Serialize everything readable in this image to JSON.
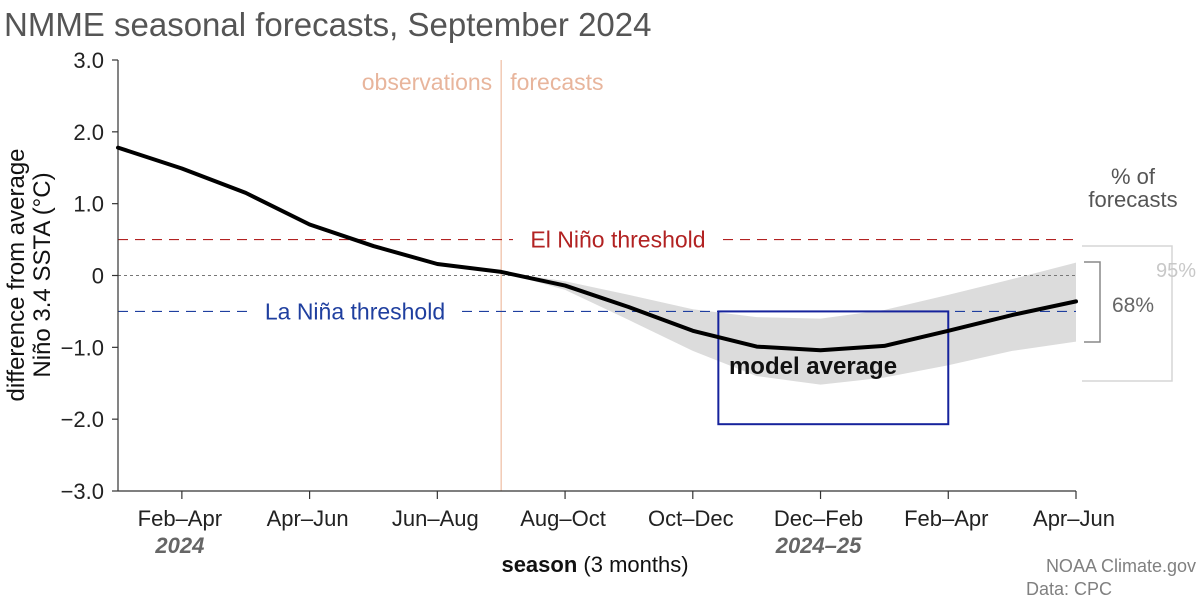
{
  "chart_data": {
    "type": "line",
    "title": "NMME seasonal forecasts, September 2024",
    "ylabel_line1": "difference from average",
    "ylabel_line2": "Niño 3.4 SSTA (°C)",
    "xlabel_bold": "season",
    "xlabel_rest": " (3 months)",
    "ylim": [
      -3.0,
      3.0
    ],
    "yticks": [
      {
        "value": 3.0,
        "label": "3.0"
      },
      {
        "value": 2.0,
        "label": "2.0"
      },
      {
        "value": 1.0,
        "label": "1.0"
      },
      {
        "value": 0,
        "label": "0"
      },
      {
        "value": -1.0,
        "label": "−1.0"
      },
      {
        "value": -2.0,
        "label": "−2.0"
      },
      {
        "value": -3.0,
        "label": "−3.0"
      }
    ],
    "xticks": [
      {
        "index": 1,
        "label": "Feb–Apr"
      },
      {
        "index": 3,
        "label": "Apr–Jun"
      },
      {
        "index": 5,
        "label": "Jun–Aug"
      },
      {
        "index": 7,
        "label": "Aug–Oct"
      },
      {
        "index": 9,
        "label": "Oct–Dec"
      },
      {
        "index": 11,
        "label": "Dec–Feb"
      },
      {
        "index": 13,
        "label": "Feb–Apr"
      },
      {
        "index": 15,
        "label": "Apr–Jun"
      }
    ],
    "year_labels": [
      {
        "index": 1,
        "label": "2024"
      },
      {
        "index": 11,
        "label": "2024–25"
      }
    ],
    "series": [
      {
        "name": "model average",
        "x": [
          0,
          1,
          2,
          3,
          4,
          5,
          6,
          7,
          8,
          9,
          10,
          11,
          12,
          13,
          14,
          15
        ],
        "values": [
          1.78,
          1.49,
          1.15,
          0.71,
          0.41,
          0.16,
          0.05,
          -0.14,
          -0.44,
          -0.77,
          -0.99,
          -1.04,
          -0.98,
          -0.77,
          -0.55,
          -0.36
        ]
      }
    ],
    "band": {
      "x": [
        6,
        7,
        8,
        9,
        10,
        11,
        12,
        13,
        14,
        15
      ],
      "upper": [
        0.05,
        -0.08,
        -0.27,
        -0.47,
        -0.58,
        -0.6,
        -0.48,
        -0.27,
        -0.05,
        0.18
      ],
      "lower": [
        0.05,
        -0.2,
        -0.62,
        -1.05,
        -1.4,
        -1.52,
        -1.42,
        -1.25,
        -1.05,
        -0.92
      ]
    },
    "thresholds": [
      {
        "name": "El Niño threshold",
        "value": 0.5,
        "color": "#b22222"
      },
      {
        "name": "La Niña threshold",
        "value": -0.5,
        "color": "#1f3f9f"
      }
    ],
    "zero_line_value": 0,
    "divider_index": 6,
    "observations_label": "observations",
    "forecasts_label": "forecasts",
    "model_average_label": "model average",
    "highlight_box": {
      "x_start": 9.4,
      "x_end": 13.0,
      "y_top": -0.5,
      "y_bottom": -2.07,
      "color": "#16239c"
    },
    "legend": {
      "title_line1": "% of",
      "title_line2": "forecasts",
      "inner_label": "68%",
      "outer_label": "95%"
    },
    "credit_line1": "NOAA Climate.gov",
    "credit_line2": "Data: CPC",
    "colors": {
      "line": "#000000",
      "band": "#dcdcdc",
      "divider": "#f1c9b4",
      "obs_forecast_text": "#e8b59c",
      "axis_text": "#222222",
      "credit": "#808080",
      "legend_inner": "#666666",
      "legend_outer": "#c8c8c8",
      "title": "#555555"
    }
  }
}
